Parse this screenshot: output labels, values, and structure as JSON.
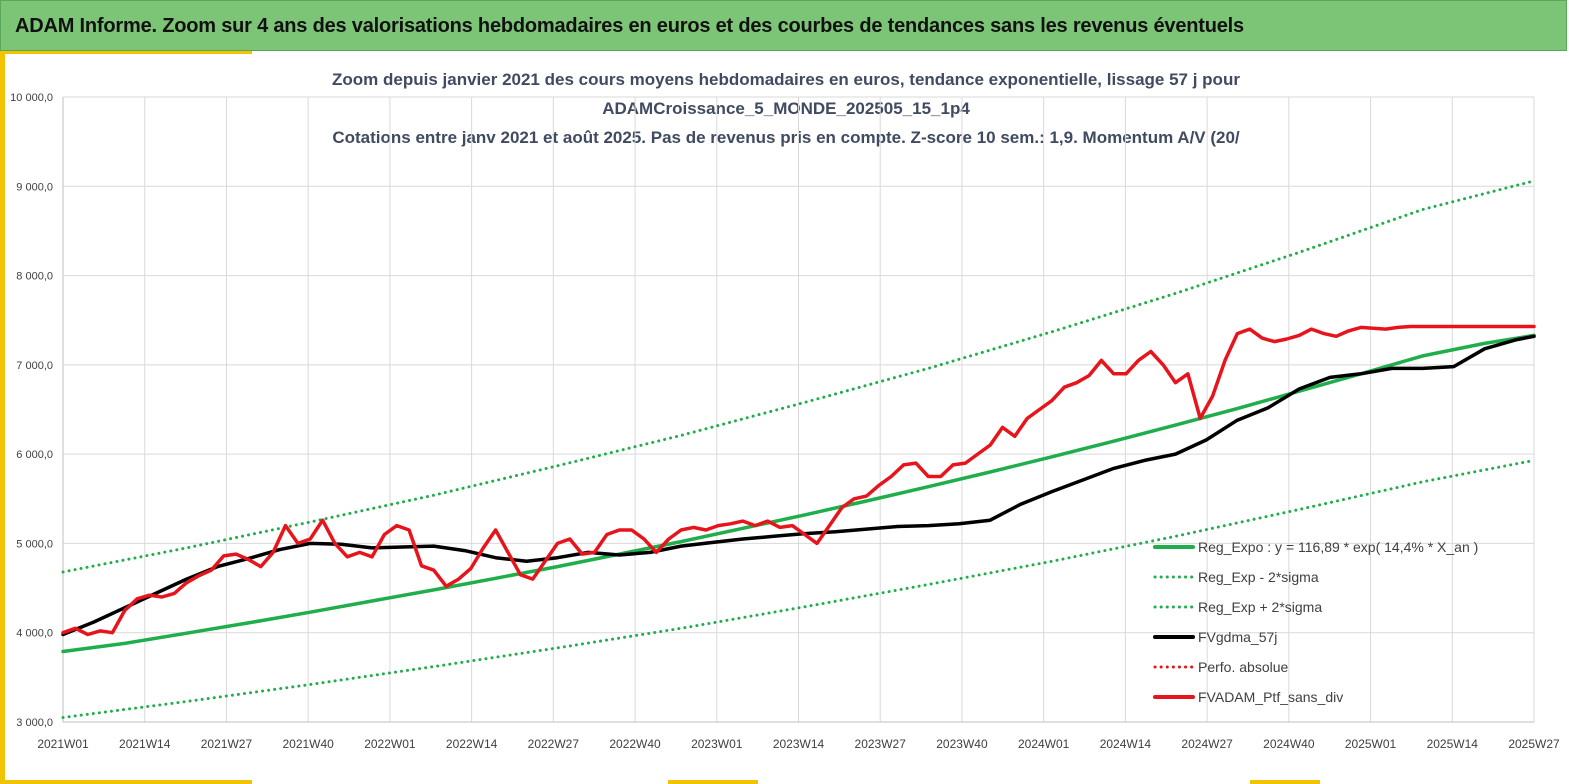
{
  "banner": {
    "title": "ADAM Informe. Zoom sur 4 ans des valorisations hebdomadaires en euros et des courbes de tendances sans les revenus éventuels"
  },
  "chart_data": {
    "type": "line",
    "title_lines": [
      "Zoom depuis janvier 2021 des cours moyens hebdomadaires  en euros, tendance exponentielle, lissage 57 j pour",
      "ADAMCroissance_5_MONDE_202505_15_1p4",
      "Cotations entre janv 2021 et août 2025. Pas de revenus pris en compte. Z-score 10 sem.: 1,9. Momentum A/V (20/"
    ],
    "x_tick_labels": [
      "2021W01",
      "2021W14",
      "2021W27",
      "2021W40",
      "2022W01",
      "2022W14",
      "2022W27",
      "2022W40",
      "2023W01",
      "2023W14",
      "2023W27",
      "2023W40",
      "2024W01",
      "2024W14",
      "2024W27",
      "2024W40",
      "2025W01",
      "2025W14",
      "2025W27"
    ],
    "y_tick_labels": [
      "3 000,0",
      "4 000,0",
      "5 000,0",
      "6 000,0",
      "7 000,0",
      "8 000,0",
      "9 000,0",
      "10 000,0"
    ],
    "ylim": [
      3000,
      10000
    ],
    "grid": true,
    "legend_position": "bottom-right",
    "colors": {
      "green": "#1fae4b",
      "black": "#000000",
      "red": "#e8141c"
    },
    "series": [
      {
        "name": "Reg_Expo : y = 116,89 * exp( 14,4% *  X_an )",
        "style": "solid",
        "color": "#1fae4b",
        "x": [
          0,
          10,
          20,
          30,
          40,
          50,
          60,
          70,
          80,
          90,
          100,
          110,
          120,
          130,
          140,
          150,
          160,
          170,
          180,
          190,
          200,
          210,
          220,
          230,
          238
        ],
        "y": [
          3790,
          3880,
          3995,
          4110,
          4230,
          4355,
          4480,
          4610,
          4740,
          4880,
          5020,
          5170,
          5320,
          5475,
          5635,
          5800,
          5970,
          6145,
          6325,
          6510,
          6705,
          6900,
          7100,
          7240,
          7330
        ]
      },
      {
        "name": "Reg_Exp - 2*sigma",
        "style": "dotted",
        "color": "#1fae4b",
        "x": [
          0,
          20,
          40,
          60,
          80,
          100,
          120,
          140,
          160,
          180,
          200,
          220,
          238
        ],
        "y": [
          3050,
          3230,
          3420,
          3620,
          3830,
          4050,
          4290,
          4540,
          4800,
          5080,
          5380,
          5690,
          5930
        ]
      },
      {
        "name": "Reg_Exp + 2*sigma",
        "style": "dotted",
        "color": "#1fae4b",
        "x": [
          0,
          20,
          40,
          60,
          80,
          100,
          120,
          140,
          160,
          180,
          200,
          220,
          238
        ],
        "y": [
          4680,
          4950,
          5240,
          5540,
          5870,
          6210,
          6580,
          6960,
          7370,
          7800,
          8260,
          8740,
          9060
        ]
      },
      {
        "name": "FVgdma_57j",
        "style": "solid",
        "color": "#000000",
        "x": [
          0,
          5,
          10,
          15,
          20,
          25,
          30,
          35,
          40,
          45,
          50,
          55,
          60,
          65,
          70,
          75,
          80,
          85,
          90,
          95,
          100,
          105,
          110,
          115,
          120,
          125,
          130,
          135,
          140,
          145,
          150,
          155,
          160,
          165,
          170,
          175,
          180,
          185,
          190,
          195,
          200,
          205,
          210,
          215,
          220,
          225,
          230,
          235,
          238
        ],
        "y": [
          3980,
          4120,
          4280,
          4440,
          4600,
          4740,
          4830,
          4930,
          5000,
          4990,
          4950,
          4960,
          4970,
          4920,
          4840,
          4800,
          4840,
          4900,
          4870,
          4900,
          4970,
          5010,
          5050,
          5080,
          5110,
          5130,
          5160,
          5190,
          5200,
          5220,
          5260,
          5440,
          5580,
          5710,
          5840,
          5930,
          6000,
          6160,
          6380,
          6520,
          6730,
          6860,
          6900,
          6960,
          6960,
          6980,
          7180,
          7280,
          7320
        ]
      },
      {
        "name": "Perfo. absolue",
        "style": "dotted",
        "color": "#e8141c",
        "x": [],
        "y": []
      },
      {
        "name": "FVADAM_Ptf_sans_div",
        "style": "solid",
        "color": "#e8141c",
        "x": [
          0,
          2,
          4,
          6,
          8,
          10,
          12,
          14,
          16,
          18,
          20,
          22,
          24,
          26,
          28,
          30,
          32,
          34,
          36,
          38,
          40,
          42,
          44,
          46,
          48,
          50,
          52,
          54,
          56,
          58,
          60,
          62,
          64,
          66,
          68,
          70,
          72,
          74,
          76,
          78,
          80,
          82,
          84,
          86,
          88,
          90,
          92,
          94,
          96,
          98,
          100,
          102,
          104,
          106,
          108,
          110,
          112,
          114,
          116,
          118,
          120,
          122,
          124,
          126,
          128,
          130,
          132,
          134,
          136,
          138,
          140,
          142,
          144,
          146,
          148,
          150,
          152,
          154,
          156,
          158,
          160,
          162,
          164,
          166,
          168,
          170,
          172,
          174,
          176,
          178,
          180,
          182,
          184,
          186,
          188,
          190,
          192,
          194,
          196,
          198,
          200,
          202,
          204,
          206,
          208,
          210,
          212,
          214,
          216,
          218,
          220,
          222,
          224,
          226,
          228,
          230,
          232,
          234,
          236,
          238
        ],
        "y": [
          4000,
          4050,
          3980,
          4020,
          4000,
          4250,
          4380,
          4420,
          4400,
          4440,
          4560,
          4640,
          4700,
          4860,
          4880,
          4820,
          4740,
          4900,
          5200,
          5000,
          5050,
          5260,
          5000,
          4850,
          4900,
          4850,
          5100,
          5200,
          5150,
          4750,
          4700,
          4520,
          4600,
          4720,
          4950,
          5150,
          4900,
          4650,
          4600,
          4800,
          5000,
          5050,
          4880,
          4900,
          5100,
          5150,
          5150,
          5050,
          4900,
          5050,
          5150,
          5180,
          5150,
          5200,
          5220,
          5250,
          5200,
          5250,
          5180,
          5200,
          5100,
          5000,
          5200,
          5400,
          5500,
          5530,
          5650,
          5750,
          5880,
          5900,
          5750,
          5750,
          5880,
          5900,
          6000,
          6100,
          6300,
          6200,
          6400,
          6500,
          6600,
          6750,
          6800,
          6880,
          7050,
          6900,
          6900,
          7050,
          7150,
          7000,
          6800,
          6900,
          6400,
          6650,
          7050,
          7350,
          7400,
          7300,
          7260,
          7290,
          7330,
          7400,
          7350,
          7320,
          7380,
          7420,
          7410,
          7400,
          7420,
          7430,
          7430,
          7430,
          7430,
          7430,
          7430,
          7430,
          7430,
          7430,
          7430,
          7430
        ]
      }
    ]
  }
}
